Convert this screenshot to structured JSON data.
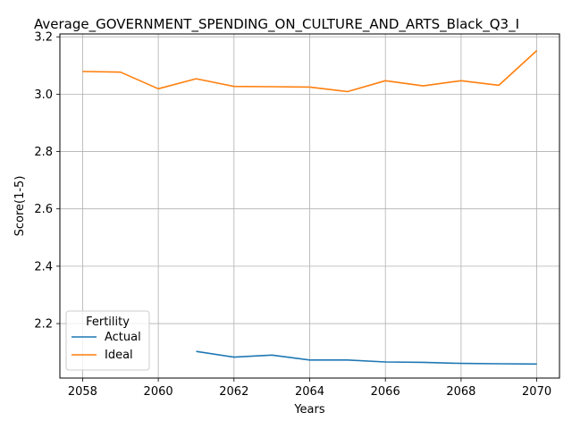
{
  "chart_data": {
    "type": "line",
    "title": "Average_GOVERNMENT_SPENDING_ON_CULTURE_AND_ARTS_Black_Q3_I",
    "xlabel": "Years",
    "ylabel": "Score(1-5)",
    "xlim": [
      2057.4,
      2070.6
    ],
    "ylim": [
      2.01,
      3.21
    ],
    "xticks": [
      2058,
      2060,
      2062,
      2064,
      2066,
      2068,
      2070
    ],
    "yticks": [
      2.2,
      2.4,
      2.6,
      2.8,
      3.0,
      3.2
    ],
    "ytick_labels": [
      "2.2",
      "2.4",
      "2.6",
      "2.8",
      "3.0",
      "3.2"
    ],
    "grid": true,
    "legend": {
      "title": "Fertility",
      "placement": "lower-left"
    },
    "series": [
      {
        "name": "Actual",
        "color": "#1f77b4",
        "x": [
          2061,
          2062,
          2063,
          2064,
          2065,
          2066,
          2067,
          2068,
          2069,
          2070
        ],
        "y": [
          2.103,
          2.083,
          2.09,
          2.073,
          2.073,
          2.066,
          2.065,
          2.061,
          2.06,
          2.059
        ]
      },
      {
        "name": "Ideal",
        "color": "#ff7f0e",
        "x": [
          2058,
          2059,
          2060,
          2061,
          2062,
          2063,
          2064,
          2065,
          2066,
          2067,
          2068,
          2069,
          2070
        ],
        "y": [
          3.079,
          3.077,
          3.019,
          3.054,
          3.027,
          3.026,
          3.025,
          3.009,
          3.047,
          3.029,
          3.047,
          3.031,
          3.152
        ]
      }
    ]
  }
}
